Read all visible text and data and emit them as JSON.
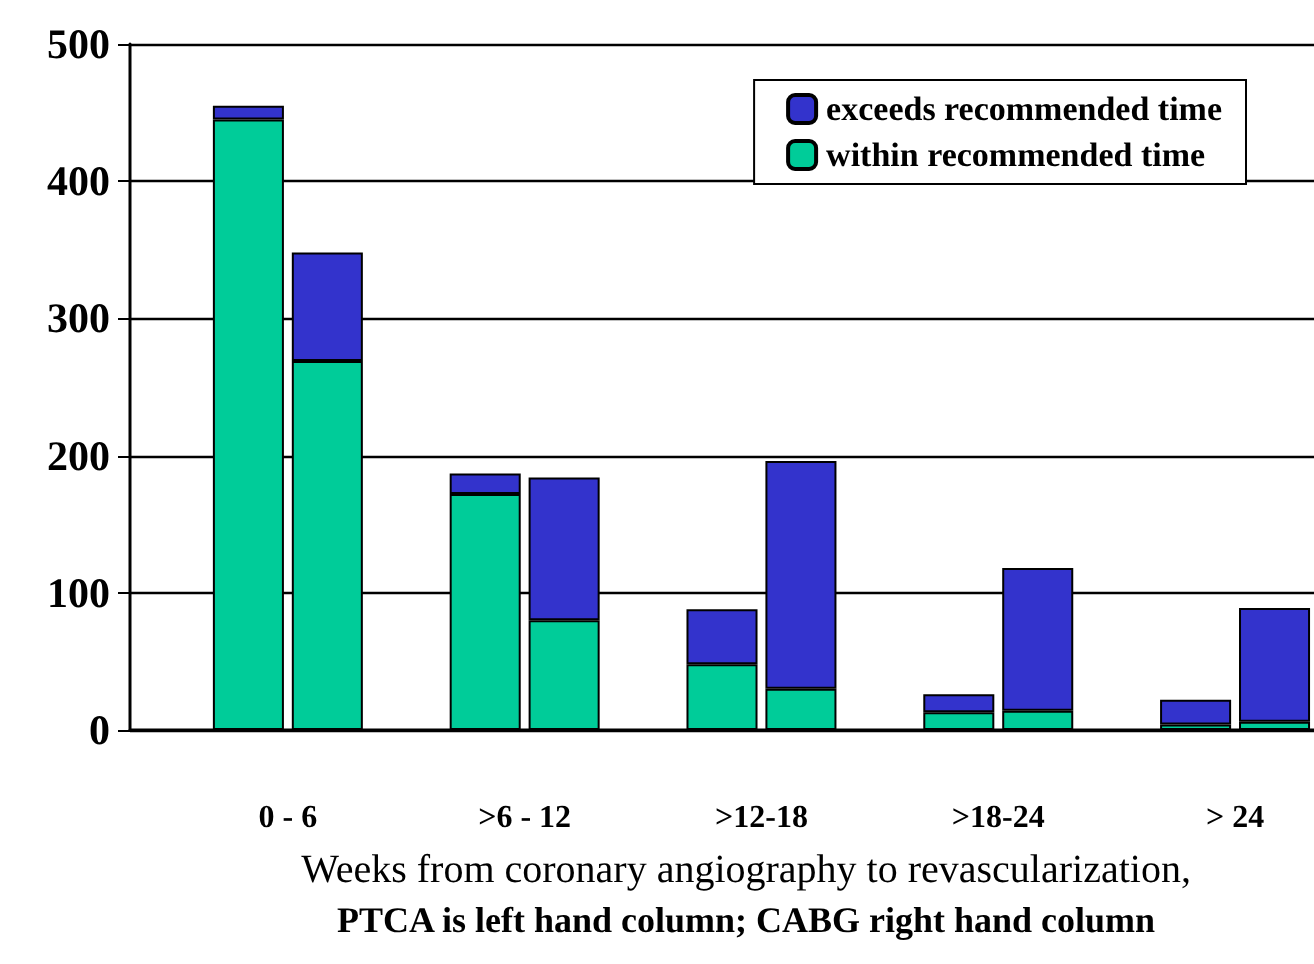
{
  "chart_data": {
    "type": "bar",
    "xlabel": "Weeks from coronary angiography to revascularization,",
    "annotations": [
      "PTCA is left hand column; CABG right hand column"
    ],
    "categories": [
      null,
      "0 - 6",
      null,
      null,
      ">6 - 12",
      null,
      null,
      ">12-18",
      null,
      null,
      ">18-24",
      null,
      null,
      "> 24",
      null
    ],
    "stacked": true,
    "series": [
      {
        "name": "within recommended time",
        "color": "#00cc99",
        "values": [
          null,
          445,
          269,
          null,
          172,
          80,
          null,
          48,
          30,
          null,
          13,
          14,
          null,
          4,
          6
        ]
      },
      {
        "name": "exceeds recommended time",
        "color": "#3333cc",
        "values": [
          null,
          10,
          79,
          null,
          15,
          104,
          null,
          40,
          166,
          null,
          13,
          104,
          null,
          18,
          83
        ]
      }
    ],
    "ylim": [
      0,
      500
    ],
    "yticks": [
      0,
      100,
      200,
      300,
      400,
      500
    ],
    "grid": "y",
    "legend": "top right"
  }
}
